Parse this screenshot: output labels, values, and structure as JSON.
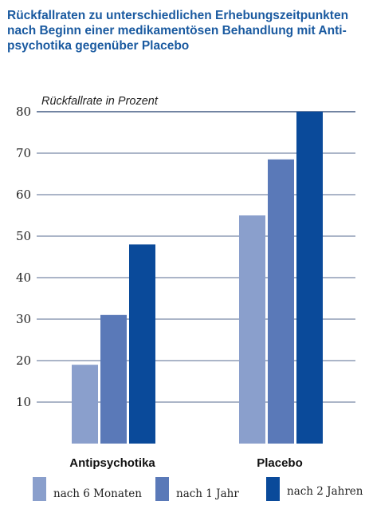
{
  "title_lines": [
    "Rückfallraten zu unterschiedlichen Erhebungszeitpunkten",
    "nach Beginn einer medikamentösen Behandlung mit Anti-",
    "psychotika gegenüber Placebo"
  ],
  "colors": {
    "title": "#1a5aa0",
    "grid": "#1f3a6b",
    "series": [
      "#8a9fcc",
      "#5a79b8",
      "#0a4a9a"
    ]
  },
  "chart_data": {
    "type": "bar",
    "title": "Rückfallraten zu unterschiedlichen Erhebungszeitpunkten nach Beginn einer medikamentösen Behandlung mit Antipsychotika gegenüber Placebo",
    "ylabel": "Rückfallrate in Prozent",
    "xlabel": "",
    "categories": [
      "Antipsychotika",
      "Placebo"
    ],
    "series": [
      {
        "name": "nach 6 Monaten",
        "values": [
          19,
          55
        ]
      },
      {
        "name": "nach 1 Jahr",
        "values": [
          31,
          68.5
        ]
      },
      {
        "name": "nach 2 Jahren",
        "values": [
          48,
          80
        ]
      }
    ],
    "ylim": [
      0,
      80
    ],
    "yticks": [
      10,
      20,
      30,
      40,
      50,
      60,
      70,
      80
    ],
    "grid": true,
    "legend": "bottom"
  }
}
